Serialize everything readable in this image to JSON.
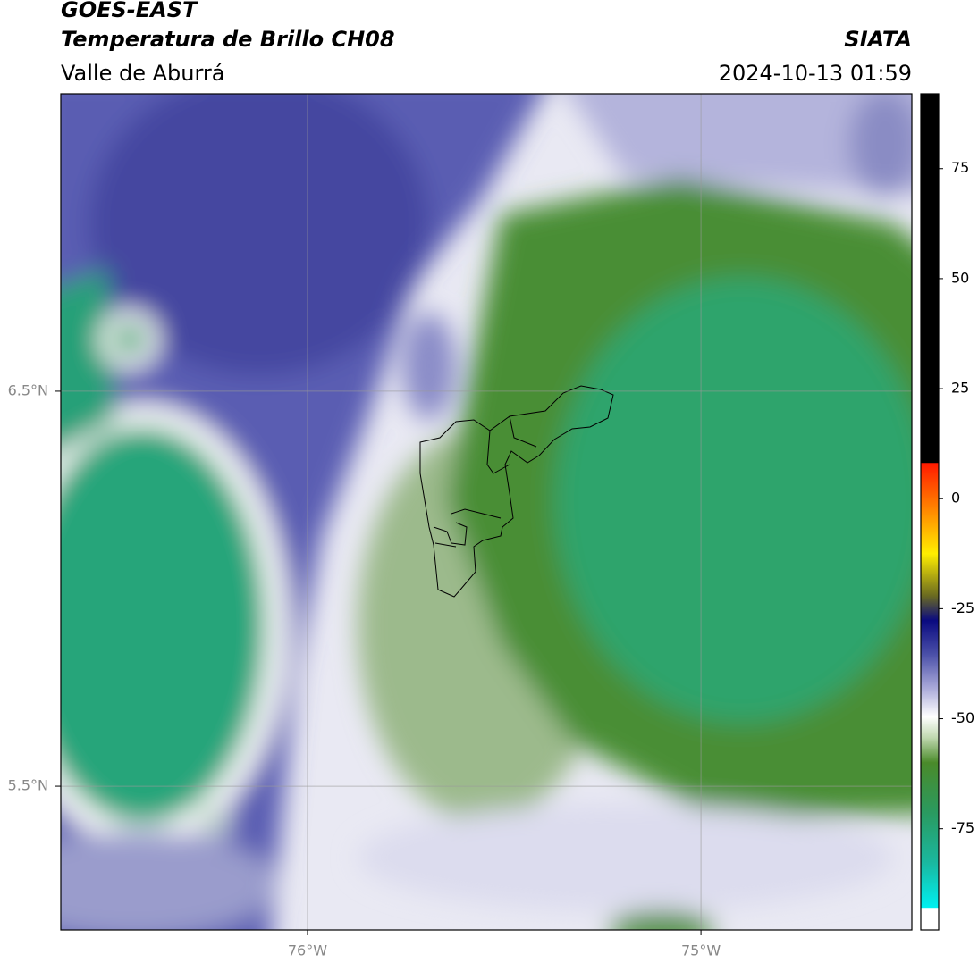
{
  "header": {
    "title": "GOES-EAST",
    "subtitle": "Temperatura de Brillo CH08",
    "region": "Valle de Aburrá",
    "source": "SIATA",
    "timestamp": "2024-10-13 01:59"
  },
  "map": {
    "xlim": [
      -76.627,
      -74.464
    ],
    "ylim": [
      5.136,
      7.253
    ],
    "xticks": [
      {
        "value": -76,
        "label": "76°W"
      },
      {
        "value": -75,
        "label": "75°W"
      }
    ],
    "yticks": [
      {
        "value": 6.5,
        "label": "6.5°N"
      },
      {
        "value": 5.5,
        "label": "5.5°N"
      }
    ],
    "grid": true
  },
  "colorbar": {
    "lim": [
      -98,
      92
    ],
    "ticks": [
      75,
      50,
      25,
      0,
      -25,
      -50,
      -75
    ]
  }
}
